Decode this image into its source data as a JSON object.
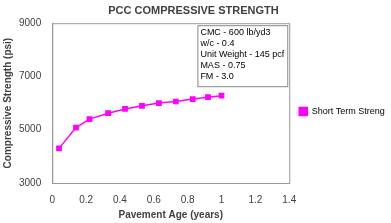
{
  "chart_data": {
    "type": "line",
    "title": "PCC COMPRESSIVE STRENGTH",
    "x_label": "Pavement Age (years)",
    "y_label": "Compressive Strength (psi)",
    "annotations": [
      "CMC - 600 lb/yd3",
      "w/c - 0.4",
      "Unit Weight - 145 pcf",
      "MAS - 0.75",
      "FM - 3.0"
    ],
    "series": [
      {
        "name": "Short Term Strength",
        "color": "#ff00ff",
        "marker": "square",
        "line_style": "solid",
        "x": [
          0.04,
          0.14,
          0.22,
          0.33,
          0.43,
          0.53,
          0.63,
          0.73,
          0.83,
          0.92,
          1.0
        ],
        "values": [
          4300,
          5080,
          5400,
          5620,
          5780,
          5900,
          6000,
          6060,
          6150,
          6220,
          6280
        ]
      }
    ],
    "xlim": [
      0,
      1.4
    ],
    "xticks": [
      0,
      0.2,
      0.4,
      0.6,
      0.8,
      1,
      1.2,
      1.4
    ],
    "ylim": [
      3000,
      9000
    ],
    "yticks": [
      3000,
      5000,
      7000,
      9000
    ],
    "grid": false,
    "legend": "right"
  }
}
